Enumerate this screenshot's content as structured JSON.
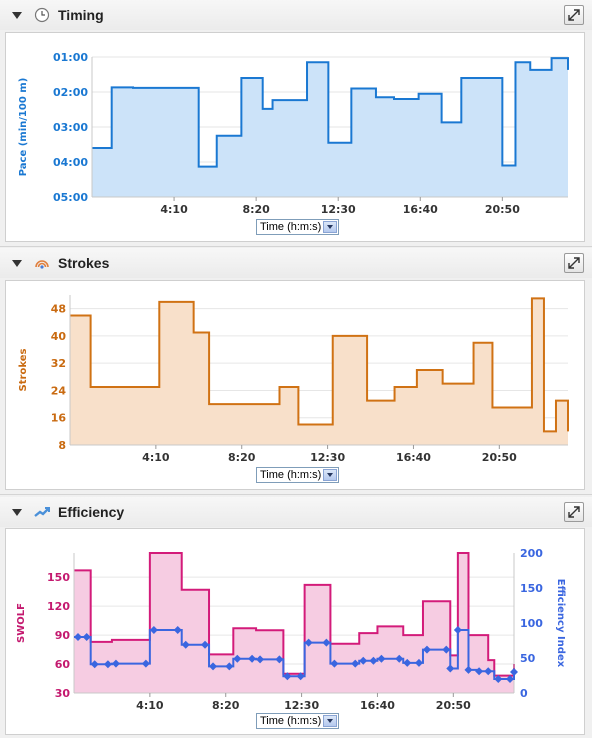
{
  "panels": [
    {
      "title": "Timing",
      "icon": "clock-icon",
      "time_select": "Time (h:m:s)"
    },
    {
      "title": "Strokes",
      "icon": "strokes-icon",
      "time_select": "Time (h:m:s)"
    },
    {
      "title": "Efficiency",
      "icon": "efficiency-icon",
      "time_select": "Time (h:m:s)"
    }
  ],
  "chart_data": [
    {
      "type": "area",
      "step": true,
      "ylabel": "Pace (min/100 m)",
      "y_inverted": true,
      "ylim": [
        60,
        300
      ],
      "ytick_labels": [
        "01:00",
        "02:00",
        "03:00",
        "04:00",
        "05:00"
      ],
      "ytick_values": [
        60,
        120,
        180,
        240,
        300
      ],
      "xtick_labels": [
        "4:10",
        "8:20",
        "12:30",
        "16:40",
        "20:50"
      ],
      "xtick_values": [
        250,
        500,
        750,
        1000,
        1250
      ],
      "xlim": [
        0,
        1450
      ],
      "color": "#1a78d2",
      "fill": "#cce3f9",
      "x": [
        0,
        60,
        125,
        240,
        325,
        380,
        455,
        520,
        550,
        655,
        720,
        790,
        865,
        920,
        995,
        1065,
        1125,
        1250,
        1290,
        1335,
        1400,
        1450
      ],
      "values": [
        216,
        112,
        113,
        113,
        248,
        195,
        96,
        149,
        134,
        69,
        207,
        114,
        129,
        132,
        123,
        172,
        96,
        246,
        69,
        82,
        62,
        82
      ]
    },
    {
      "type": "area",
      "step": true,
      "ylabel": "Strokes",
      "ylim": [
        8,
        52
      ],
      "ytick_labels": [
        "8",
        "16",
        "24",
        "32",
        "40",
        "48"
      ],
      "ytick_values": [
        8,
        16,
        24,
        32,
        40,
        48
      ],
      "xtick_labels": [
        "4:10",
        "8:20",
        "12:30",
        "16:40",
        "20:50"
      ],
      "xtick_values": [
        250,
        500,
        750,
        1000,
        1250
      ],
      "xlim": [
        0,
        1450
      ],
      "color": "#d07214",
      "fill": "#f8e0ca",
      "x": [
        0,
        60,
        260,
        360,
        405,
        610,
        665,
        765,
        865,
        945,
        1010,
        1085,
        1175,
        1230,
        1345,
        1380,
        1415,
        1450
      ],
      "values": [
        46,
        25,
        50,
        41,
        20,
        25,
        14,
        40,
        21,
        25,
        30,
        26,
        38,
        19,
        51,
        12,
        21,
        12
      ]
    },
    {
      "type": "area",
      "step": true,
      "ylabel": "SWOLF",
      "y2label": "Efficiency Index",
      "ylim": [
        30,
        175
      ],
      "ytick_labels": [
        "30",
        "60",
        "90",
        "120",
        "150"
      ],
      "ytick_values": [
        30,
        60,
        90,
        120,
        150
      ],
      "y2lim": [
        0,
        200
      ],
      "y2tick_labels": [
        "0",
        "50",
        "100",
        "150",
        "200"
      ],
      "y2tick_values": [
        0,
        50,
        100,
        150,
        200
      ],
      "xtick_labels": [
        "4:10",
        "8:20",
        "12:30",
        "16:40",
        "20:50"
      ],
      "xtick_values": [
        250,
        500,
        750,
        1000,
        1250
      ],
      "xlim": [
        0,
        1450
      ],
      "swolf_color": "#d31b7a",
      "swolf_fill": "#f6cce2",
      "efficiency_color": "#3a66e0",
      "swolf_x": [
        0,
        55,
        125,
        250,
        355,
        445,
        525,
        600,
        690,
        760,
        845,
        940,
        1000,
        1085,
        1150,
        1240,
        1265,
        1300,
        1365,
        1385,
        1450
      ],
      "swolf_values": [
        157,
        83,
        85,
        175,
        137,
        70,
        97,
        95,
        50,
        142,
        81,
        92,
        99,
        90,
        125,
        69,
        175,
        90,
        64,
        48,
        60
      ],
      "efficiency_x": [
        0,
        55,
        125,
        250,
        355,
        445,
        525,
        600,
        690,
        760,
        845,
        940,
        1000,
        1085,
        1150,
        1240,
        1265,
        1300,
        1335,
        1365,
        1385,
        1450
      ],
      "efficiency_values": [
        80,
        41,
        42,
        90,
        69,
        38,
        49,
        48,
        24,
        72,
        42,
        46,
        49,
        43,
        62,
        35,
        90,
        33,
        31,
        31,
        20,
        30
      ]
    }
  ]
}
